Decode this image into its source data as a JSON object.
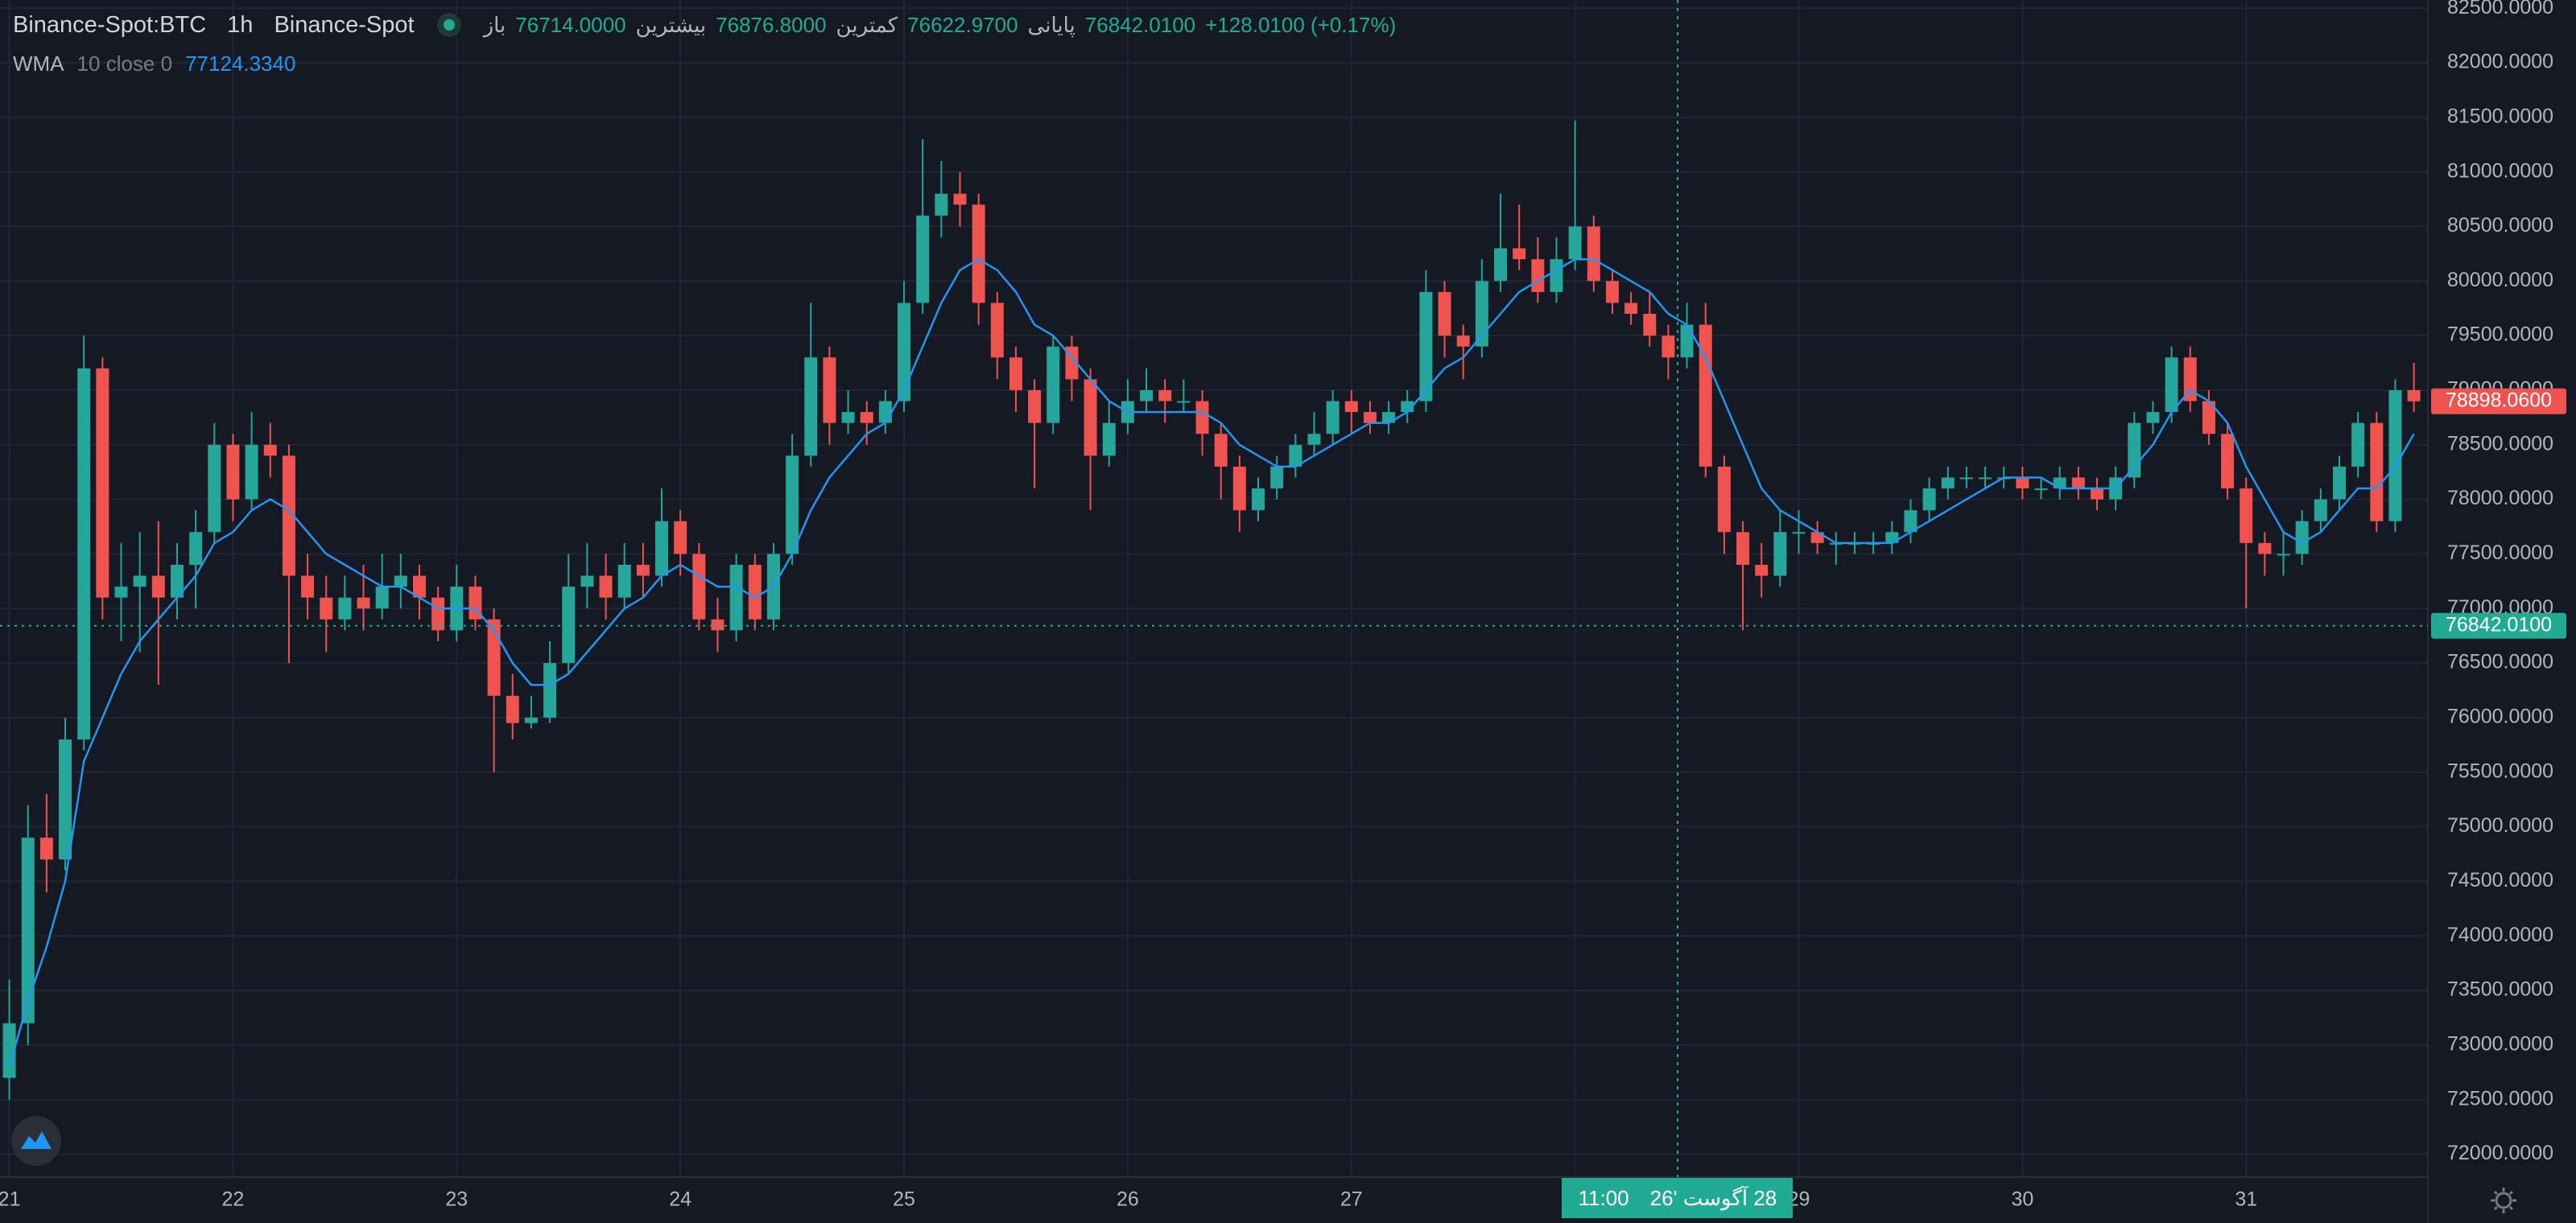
{
  "header": {
    "symbol": "Binance-Spot:BTC",
    "interval": "1h",
    "exchange": "Binance-Spot",
    "ohlc_legend": [
      {
        "label": "باز",
        "value": "76714.0000"
      },
      {
        "label": "بیشترین",
        "value": "76876.8000"
      },
      {
        "label": "کمترین",
        "value": "76622.9700"
      },
      {
        "label": "پایانی",
        "value": "76842.0100"
      }
    ],
    "change": "+128.0100 (+0.17%)"
  },
  "chart_data": {
    "type": "candlestick",
    "up_color": "#26a69a",
    "down_color": "#ef5350",
    "grid": true,
    "xlim": [
      -1,
      259.5
    ],
    "xticks": [
      {
        "value": 0,
        "label": "21"
      },
      {
        "value": 24,
        "label": "22"
      },
      {
        "value": 48,
        "label": "23"
      },
      {
        "value": 72,
        "label": "24"
      },
      {
        "value": 96,
        "label": "25"
      },
      {
        "value": 120,
        "label": "26"
      },
      {
        "value": 144,
        "label": "27"
      },
      {
        "value": 168,
        "label": "28"
      },
      {
        "value": 192,
        "label": "29"
      },
      {
        "value": 216,
        "label": "30"
      },
      {
        "value": 240,
        "label": "31"
      }
    ],
    "ylim": [
      71790,
      82575
    ],
    "yticks": [
      {
        "value": 72000,
        "label": "72000.0000"
      },
      {
        "value": 72500,
        "label": "72500.0000"
      },
      {
        "value": 73000,
        "label": "73000.0000"
      },
      {
        "value": 73500,
        "label": "73500.0000"
      },
      {
        "value": 74000,
        "label": "74000.0000"
      },
      {
        "value": 74500,
        "label": "74500.0000"
      },
      {
        "value": 75000,
        "label": "75000.0000"
      },
      {
        "value": 75500,
        "label": "75500.0000"
      },
      {
        "value": 76000,
        "label": "76000.0000"
      },
      {
        "value": 76500,
        "label": "76500.0000"
      },
      {
        "value": 77000,
        "label": "77000.0000"
      },
      {
        "value": 77500,
        "label": "77500.0000"
      },
      {
        "value": 78000,
        "label": "78000.0000"
      },
      {
        "value": 78500,
        "label": "78500.0000"
      },
      {
        "value": 79000,
        "label": "79000.0000"
      },
      {
        "value": 79500,
        "label": "79500.0000"
      },
      {
        "value": 80000,
        "label": "80000.0000"
      },
      {
        "value": 80500,
        "label": "80500.0000"
      },
      {
        "value": 81000,
        "label": "81000.0000"
      },
      {
        "value": 81500,
        "label": "81500.0000"
      },
      {
        "value": 82000,
        "label": "82000.0000"
      },
      {
        "value": 82500,
        "label": "82500.0000"
      }
    ],
    "x": [
      0,
      2,
      4,
      6,
      8,
      10,
      12,
      14,
      16,
      18,
      20,
      22,
      24,
      26,
      28,
      30,
      32,
      34,
      36,
      38,
      40,
      42,
      44,
      46,
      48,
      50,
      52,
      54,
      56,
      58,
      60,
      62,
      64,
      66,
      68,
      70,
      72,
      74,
      76,
      78,
      80,
      82,
      84,
      86,
      88,
      90,
      92,
      94,
      96,
      98,
      100,
      102,
      104,
      106,
      108,
      110,
      112,
      114,
      116,
      118,
      120,
      122,
      124,
      126,
      128,
      130,
      132,
      134,
      136,
      138,
      140,
      142,
      144,
      146,
      148,
      150,
      152,
      154,
      156,
      158,
      160,
      162,
      164,
      166,
      168,
      170,
      172,
      174,
      176,
      178,
      180,
      182,
      184,
      186,
      188,
      190,
      192,
      194,
      196,
      198,
      200,
      202,
      204,
      206,
      208,
      210,
      212,
      214,
      216,
      218,
      220,
      222,
      224,
      226,
      228,
      230,
      232,
      234,
      236,
      238,
      240,
      242,
      244,
      246,
      248,
      250,
      252,
      254,
      256,
      258
    ],
    "ohlc": [
      [
        72700,
        73600,
        72500,
        73200
      ],
      [
        73200,
        75200,
        73000,
        74900
      ],
      [
        74900,
        75300,
        74400,
        74700
      ],
      [
        74700,
        76000,
        74600,
        75800
      ],
      [
        75800,
        79500,
        75700,
        79200
      ],
      [
        79200,
        79300,
        76900,
        77100
      ],
      [
        77100,
        77600,
        76700,
        77200
      ],
      [
        77200,
        77700,
        76600,
        77300
      ],
      [
        77300,
        77800,
        76300,
        77100
      ],
      [
        77100,
        77600,
        76900,
        77400
      ],
      [
        77400,
        77900,
        77000,
        77700
      ],
      [
        77700,
        78700,
        77600,
        78500
      ],
      [
        78500,
        78600,
        77800,
        78000
      ],
      [
        78000,
        78800,
        77900,
        78500
      ],
      [
        78500,
        78700,
        78200,
        78400
      ],
      [
        78400,
        78500,
        76500,
        77300
      ],
      [
        77300,
        77500,
        76900,
        77100
      ],
      [
        77100,
        77300,
        76600,
        76900
      ],
      [
        76900,
        77300,
        76800,
        77100
      ],
      [
        77100,
        77400,
        76800,
        77000
      ],
      [
        77000,
        77500,
        76900,
        77200
      ],
      [
        77200,
        77500,
        77000,
        77300
      ],
      [
        77300,
        77400,
        76900,
        77100
      ],
      [
        77100,
        77200,
        76700,
        76800
      ],
      [
        76800,
        77400,
        76700,
        77200
      ],
      [
        77200,
        77300,
        76800,
        76900
      ],
      [
        76900,
        77000,
        75500,
        76200
      ],
      [
        76200,
        76400,
        75800,
        75950
      ],
      [
        75950,
        76200,
        75900,
        76000
      ],
      [
        76000,
        76700,
        75950,
        76500
      ],
      [
        76500,
        77500,
        76400,
        77200
      ],
      [
        77200,
        77600,
        77000,
        77300
      ],
      [
        77300,
        77500,
        76900,
        77100
      ],
      [
        77100,
        77600,
        77000,
        77400
      ],
      [
        77400,
        77600,
        77100,
        77300
      ],
      [
        77300,
        78100,
        77200,
        77800
      ],
      [
        77800,
        77900,
        77300,
        77500
      ],
      [
        77500,
        77600,
        76800,
        76900
      ],
      [
        76900,
        77100,
        76600,
        76800
      ],
      [
        76800,
        77500,
        76700,
        77400
      ],
      [
        77400,
        77500,
        76800,
        76900
      ],
      [
        76900,
        77600,
        76800,
        77500
      ],
      [
        77500,
        78600,
        77400,
        78400
      ],
      [
        78400,
        79800,
        78300,
        79300
      ],
      [
        79300,
        79400,
        78500,
        78700
      ],
      [
        78700,
        79000,
        78600,
        78800
      ],
      [
        78800,
        78900,
        78500,
        78700
      ],
      [
        78700,
        79000,
        78600,
        78900
      ],
      [
        78900,
        80000,
        78800,
        79800
      ],
      [
        79800,
        81300,
        79700,
        80600
      ],
      [
        80600,
        81100,
        80400,
        80800
      ],
      [
        80800,
        81000,
        80500,
        80700
      ],
      [
        80700,
        80800,
        79600,
        79800
      ],
      [
        79800,
        79900,
        79100,
        79300
      ],
      [
        79300,
        79400,
        78800,
        79000
      ],
      [
        79000,
        79100,
        78100,
        78700
      ],
      [
        78700,
        79500,
        78600,
        79400
      ],
      [
        79400,
        79500,
        78900,
        79100
      ],
      [
        79100,
        79200,
        77900,
        78400
      ],
      [
        78400,
        78900,
        78300,
        78700
      ],
      [
        78700,
        79100,
        78600,
        78900
      ],
      [
        78900,
        79200,
        78800,
        79000
      ],
      [
        79000,
        79100,
        78700,
        78900
      ],
      [
        78900,
        79100,
        78800,
        78900
      ],
      [
        78900,
        79000,
        78400,
        78600
      ],
      [
        78600,
        78700,
        78000,
        78300
      ],
      [
        78300,
        78400,
        77700,
        77900
      ],
      [
        77900,
        78200,
        77800,
        78100
      ],
      [
        78100,
        78400,
        78000,
        78300
      ],
      [
        78300,
        78600,
        78200,
        78500
      ],
      [
        78500,
        78800,
        78400,
        78600
      ],
      [
        78600,
        79000,
        78500,
        78900
      ],
      [
        78900,
        79000,
        78600,
        78800
      ],
      [
        78800,
        78900,
        78600,
        78700
      ],
      [
        78700,
        78900,
        78600,
        78800
      ],
      [
        78800,
        79000,
        78700,
        78900
      ],
      [
        78900,
        80100,
        78800,
        79900
      ],
      [
        79900,
        80000,
        79300,
        79500
      ],
      [
        79500,
        79600,
        79100,
        79400
      ],
      [
        79400,
        80200,
        79300,
        80000
      ],
      [
        80000,
        80800,
        79900,
        80300
      ],
      [
        80300,
        80700,
        80100,
        80200
      ],
      [
        80200,
        80400,
        79800,
        79900
      ],
      [
        79900,
        80400,
        79800,
        80200
      ],
      [
        80200,
        81470,
        80100,
        80500
      ],
      [
        80500,
        80600,
        79900,
        80000
      ],
      [
        80000,
        80100,
        79700,
        79800
      ],
      [
        79800,
        79900,
        79600,
        79700
      ],
      [
        79700,
        79900,
        79400,
        79500
      ],
      [
        79500,
        79600,
        79100,
        79300
      ],
      [
        79300,
        79800,
        79200,
        79600
      ],
      [
        79600,
        79800,
        78200,
        78300
      ],
      [
        78300,
        78400,
        77500,
        77700
      ],
      [
        77700,
        77800,
        76800,
        77400
      ],
      [
        77400,
        77600,
        77100,
        77300
      ],
      [
        77300,
        77900,
        77200,
        77700
      ],
      [
        77700,
        77900,
        77500,
        77700
      ],
      [
        77700,
        77800,
        77500,
        77600
      ],
      [
        77600,
        77700,
        77400,
        77600
      ],
      [
        77600,
        77700,
        77500,
        77600
      ],
      [
        77600,
        77700,
        77500,
        77600
      ],
      [
        77600,
        77800,
        77500,
        77700
      ],
      [
        77700,
        78000,
        77600,
        77900
      ],
      [
        77900,
        78200,
        77800,
        78100
      ],
      [
        78100,
        78300,
        78000,
        78200
      ],
      [
        78200,
        78300,
        78100,
        78200
      ],
      [
        78200,
        78300,
        78100,
        78200
      ],
      [
        78200,
        78300,
        78100,
        78200
      ],
      [
        78200,
        78300,
        78000,
        78100
      ],
      [
        78100,
        78200,
        78000,
        78100
      ],
      [
        78100,
        78300,
        78000,
        78200
      ],
      [
        78200,
        78300,
        78000,
        78100
      ],
      [
        78100,
        78200,
        77900,
        78000
      ],
      [
        78000,
        78300,
        77900,
        78200
      ],
      [
        78200,
        78800,
        78100,
        78700
      ],
      [
        78700,
        78900,
        78600,
        78800
      ],
      [
        78800,
        79400,
        78700,
        79300
      ],
      [
        79300,
        79400,
        78800,
        78900
      ],
      [
        78900,
        79000,
        78500,
        78600
      ],
      [
        78600,
        78700,
        78000,
        78100
      ],
      [
        78100,
        78200,
        77000,
        77600
      ],
      [
        77600,
        77700,
        77300,
        77500
      ],
      [
        77500,
        77700,
        77300,
        77500
      ],
      [
        77500,
        77900,
        77400,
        77800
      ],
      [
        77800,
        78100,
        77700,
        78000
      ],
      [
        78000,
        78400,
        77900,
        78300
      ],
      [
        78300,
        78800,
        78200,
        78700
      ],
      [
        78700,
        78800,
        77700,
        77800
      ],
      [
        77800,
        79100,
        77700,
        79000
      ],
      [
        79000,
        79250,
        78800,
        78898.06
      ]
    ],
    "indicator": {
      "name": "WMA",
      "params": "10 close 0",
      "value": "77124.3340",
      "color": "#2196f3",
      "values": [
        72800,
        73400,
        73900,
        74500,
        75600,
        76000,
        76400,
        76700,
        76900,
        77100,
        77300,
        77600,
        77700,
        77900,
        78000,
        77900,
        77700,
        77500,
        77400,
        77300,
        77200,
        77200,
        77100,
        77000,
        77000,
        77000,
        76800,
        76500,
        76300,
        76300,
        76400,
        76600,
        76800,
        77000,
        77100,
        77300,
        77400,
        77300,
        77200,
        77200,
        77100,
        77200,
        77500,
        77900,
        78200,
        78400,
        78600,
        78700,
        79000,
        79400,
        79800,
        80100,
        80200,
        80100,
        79900,
        79600,
        79500,
        79300,
        79100,
        78900,
        78800,
        78800,
        78800,
        78800,
        78800,
        78700,
        78500,
        78400,
        78300,
        78300,
        78400,
        78500,
        78600,
        78700,
        78700,
        78800,
        79000,
        79200,
        79300,
        79500,
        79700,
        79900,
        80000,
        80100,
        80200,
        80200,
        80100,
        80000,
        79900,
        79700,
        79600,
        79300,
        78900,
        78500,
        78100,
        77900,
        77800,
        77700,
        77600,
        77600,
        77600,
        77600,
        77700,
        77800,
        77900,
        78000,
        78100,
        78200,
        78200,
        78200,
        78100,
        78100,
        78100,
        78100,
        78300,
        78500,
        78800,
        79000,
        78900,
        78700,
        78300,
        78000,
        77700,
        77600,
        77700,
        77900,
        78100,
        78100,
        78300,
        78600
      ]
    },
    "last_price": {
      "value": 78898.06,
      "label": "78898.0600"
    },
    "crosshair": {
      "x": 179,
      "price": {
        "value": 76842.01,
        "label": "76842.0100"
      },
      "time": "11:00",
      "date": "28 آگوست '26"
    }
  }
}
